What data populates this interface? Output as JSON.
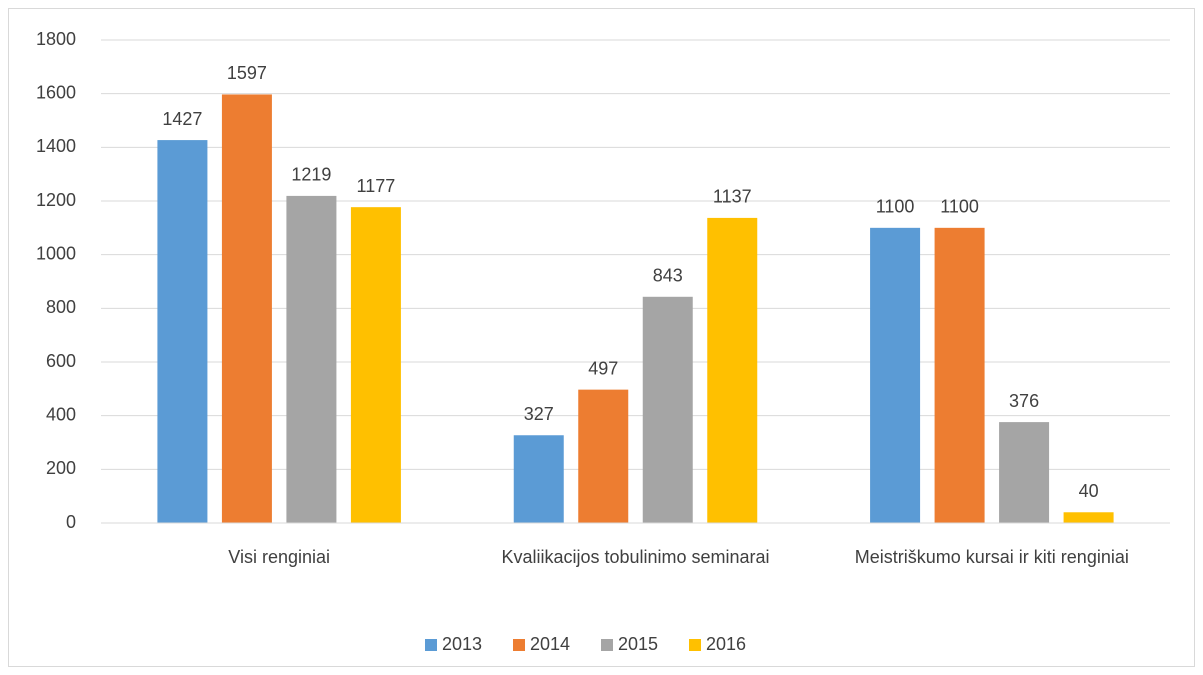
{
  "chart_data": {
    "type": "bar",
    "categories": [
      "Visi renginiai",
      "Kvaliikacijos tobulinimo seminarai",
      "Meistriškumo kursai ir kiti renginiai"
    ],
    "series": [
      {
        "name": "2013",
        "color": "#5b9bd5",
        "values": [
          1427,
          327,
          1100
        ]
      },
      {
        "name": "2014",
        "color": "#ed7d31",
        "values": [
          1597,
          497,
          1100
        ]
      },
      {
        "name": "2015",
        "color": "#a5a5a5",
        "values": [
          1219,
          843,
          376
        ]
      },
      {
        "name": "2016",
        "color": "#ffc000",
        "values": [
          1177,
          1137,
          40
        ]
      }
    ],
    "ylim": [
      0,
      1800
    ],
    "yticks": [
      0,
      200,
      400,
      600,
      800,
      1000,
      1200,
      1400,
      1600,
      1800
    ],
    "grid": true,
    "legend": "bottom",
    "data_labels": true
  }
}
